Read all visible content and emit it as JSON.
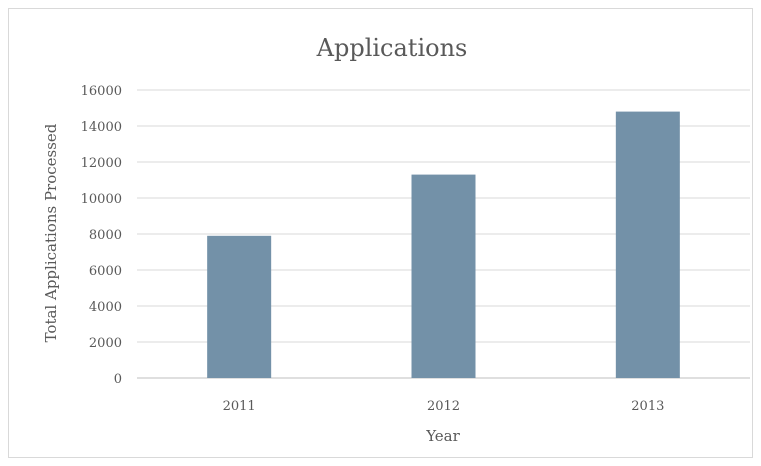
{
  "chart_data": {
    "type": "bar",
    "title": "Applications",
    "xlabel": "Year",
    "ylabel": "Total Applications Processed",
    "categories": [
      "2011",
      "2012",
      "2013"
    ],
    "values": [
      7900,
      11300,
      14800
    ],
    "ylim": [
      0,
      16000
    ],
    "yticks": [
      0,
      2000,
      4000,
      6000,
      8000,
      10000,
      12000,
      14000,
      16000
    ],
    "grid": true,
    "legend": "none",
    "bar_color": "#7391a8"
  }
}
